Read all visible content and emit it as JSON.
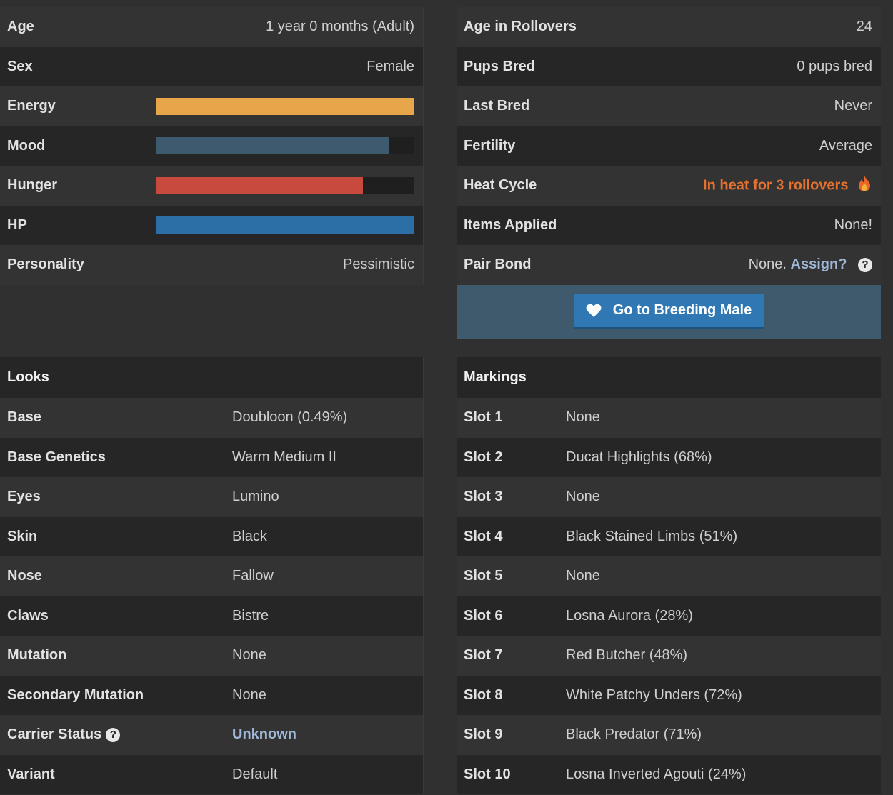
{
  "stats": [
    {
      "label": "Age",
      "value": "1 year 0 months (Adult)"
    },
    {
      "label": "Sex",
      "value": "Female"
    },
    {
      "label": "Energy",
      "bar": 1.0,
      "color": "#e8a64b"
    },
    {
      "label": "Mood",
      "bar": 0.9,
      "color": "#3d5a6e"
    },
    {
      "label": "Hunger",
      "bar": 0.8,
      "color": "#c84a3f"
    },
    {
      "label": "HP",
      "bar": 1.0,
      "color": "#2c6fa6"
    },
    {
      "label": "Personality",
      "value": "Pessimistic"
    }
  ],
  "breeding": {
    "age_rollovers_label": "Age in Rollovers",
    "age_rollovers_value": "24",
    "pups_bred_label": "Pups Bred",
    "pups_bred_value": "0 pups bred",
    "last_bred_label": "Last Bred",
    "last_bred_value": "Never",
    "fertility_label": "Fertility",
    "fertility_value": "Average",
    "heat_label": "Heat Cycle",
    "heat_value": "In heat for 3 rollovers",
    "items_label": "Items Applied",
    "items_value": "None!",
    "pair_label": "Pair Bond",
    "pair_value": "None.",
    "pair_link": "Assign?",
    "button_label": "Go to Breeding Male"
  },
  "looks": {
    "title": "Looks",
    "rows": [
      {
        "label": "Base",
        "value": "Doubloon (0.49%)"
      },
      {
        "label": "Base Genetics",
        "value": "Warm Medium II"
      },
      {
        "label": "Eyes",
        "value": "Lumino"
      },
      {
        "label": "Skin",
        "value": "Black"
      },
      {
        "label": "Nose",
        "value": "Fallow"
      },
      {
        "label": "Claws",
        "value": "Bistre"
      },
      {
        "label": "Mutation",
        "value": "None"
      },
      {
        "label": "Secondary Mutation",
        "value": "None"
      },
      {
        "label": "Carrier Status",
        "value": "Unknown"
      },
      {
        "label": "Variant",
        "value": "Default"
      }
    ]
  },
  "markings": {
    "title": "Markings",
    "rows": [
      {
        "label": "Slot 1",
        "value": "None"
      },
      {
        "label": "Slot 2",
        "value": "Ducat Highlights (68%)"
      },
      {
        "label": "Slot 3",
        "value": "None"
      },
      {
        "label": "Slot 4",
        "value": "Black Stained Limbs (51%)"
      },
      {
        "label": "Slot 5",
        "value": "None"
      },
      {
        "label": "Slot 6",
        "value": "Losna Aurora (28%)"
      },
      {
        "label": "Slot 7",
        "value": "Red Butcher (48%)"
      },
      {
        "label": "Slot 8",
        "value": "White Patchy Unders (72%)"
      },
      {
        "label": "Slot 9",
        "value": "Black Predator (71%)"
      },
      {
        "label": "Slot 10",
        "value": "Losna Inverted Agouti (24%)"
      }
    ]
  },
  "icons": {
    "help": "question-circle-icon",
    "heat": "flame-icon",
    "button": "heart-icon"
  }
}
